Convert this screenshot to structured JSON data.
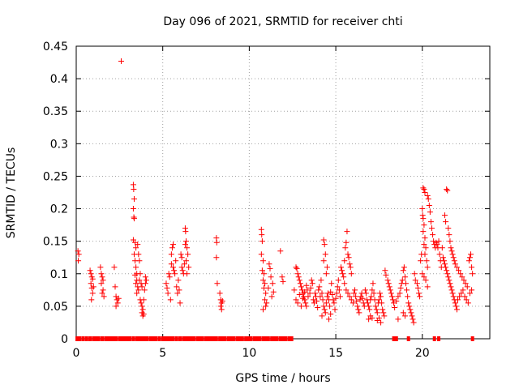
{
  "chart_data": {
    "type": "scatter",
    "title": "Day 096 of 2021, SRMTID for receiver chti",
    "xlabel": "GPS time / hours",
    "ylabel": "SRMTID / TECUs",
    "xlim": [
      0,
      23.9
    ],
    "ylim": [
      0,
      0.45
    ],
    "xticks": [
      0,
      5,
      10,
      15,
      20
    ],
    "xtick_labels": [
      "0",
      "5",
      "10",
      "15",
      "20"
    ],
    "yticks": [
      0,
      0.05,
      0.1,
      0.15,
      0.2,
      0.25,
      0.3,
      0.35,
      0.4,
      0.45
    ],
    "ytick_labels": [
      "0",
      "0.05",
      "0.1",
      "0.15",
      "0.2",
      "0.25",
      "0.3",
      "0.35",
      "0.4",
      "0.45"
    ],
    "grid": true,
    "legend": "none",
    "marker": "plus",
    "series_color": "#ff0000",
    "zero_marker_color": "#ff0000",
    "zero_value_x": [
      0.05,
      0.2,
      0.4,
      0.6,
      0.8,
      1.0,
      1.15,
      1.3,
      1.5,
      1.7,
      1.85,
      2.0,
      2.15,
      2.3,
      2.5,
      2.65,
      2.8,
      2.95,
      3.1,
      3.3,
      3.5,
      3.65,
      3.8,
      3.95,
      4.1,
      4.3,
      4.45,
      4.6,
      4.8,
      5.0,
      5.15,
      5.3,
      5.45,
      5.6,
      5.8,
      6.0,
      6.2,
      6.35,
      6.5,
      6.65,
      6.8,
      7.0,
      7.15,
      7.3,
      7.5,
      7.65,
      7.8,
      7.95,
      8.1,
      8.3,
      8.45,
      8.6,
      8.8,
      8.95,
      9.1,
      9.3,
      9.45,
      9.6,
      9.8,
      9.95,
      10.1,
      10.3,
      10.45,
      10.6,
      10.8,
      10.95,
      11.1,
      11.3,
      11.45,
      11.6,
      11.8,
      11.95,
      12.1,
      12.3,
      12.45,
      18.35,
      18.5,
      19.2,
      20.7,
      20.95,
      22.9
    ],
    "points": [
      [
        0.1,
        0.135
      ],
      [
        0.15,
        0.13
      ],
      [
        0.12,
        0.12
      ],
      [
        0.8,
        0.105
      ],
      [
        0.85,
        0.1
      ],
      [
        0.9,
        0.095
      ],
      [
        0.85,
        0.085
      ],
      [
        0.9,
        0.078
      ],
      [
        0.95,
        0.07
      ],
      [
        0.88,
        0.06
      ],
      [
        1.0,
        0.08
      ],
      [
        0.95,
        0.092
      ],
      [
        1.4,
        0.11
      ],
      [
        1.45,
        0.1
      ],
      [
        1.5,
        0.095
      ],
      [
        1.45,
        0.085
      ],
      [
        1.55,
        0.075
      ],
      [
        1.5,
        0.07
      ],
      [
        1.6,
        0.065
      ],
      [
        1.55,
        0.09
      ],
      [
        2.2,
        0.11
      ],
      [
        2.25,
        0.08
      ],
      [
        2.3,
        0.065
      ],
      [
        2.35,
        0.06
      ],
      [
        2.4,
        0.055
      ],
      [
        2.3,
        0.05
      ],
      [
        2.45,
        0.062
      ],
      [
        2.6,
        0.427
      ],
      [
        3.3,
        0.237
      ],
      [
        3.32,
        0.23
      ],
      [
        3.35,
        0.215
      ],
      [
        3.3,
        0.2
      ],
      [
        3.33,
        0.187
      ],
      [
        3.35,
        0.185
      ],
      [
        3.3,
        0.152
      ],
      [
        3.4,
        0.148
      ],
      [
        3.45,
        0.14
      ],
      [
        3.35,
        0.13
      ],
      [
        3.4,
        0.12
      ],
      [
        3.45,
        0.11
      ],
      [
        3.5,
        0.1
      ],
      [
        3.4,
        0.098
      ],
      [
        3.5,
        0.09
      ],
      [
        3.45,
        0.085
      ],
      [
        3.55,
        0.08
      ],
      [
        3.6,
        0.075
      ],
      [
        3.5,
        0.07
      ],
      [
        3.55,
        0.145
      ],
      [
        3.6,
        0.13
      ],
      [
        3.65,
        0.12
      ],
      [
        3.7,
        0.1
      ],
      [
        3.65,
        0.09
      ],
      [
        3.75,
        0.085
      ],
      [
        3.8,
        0.08
      ],
      [
        3.7,
        0.06
      ],
      [
        3.75,
        0.055
      ],
      [
        3.8,
        0.05
      ],
      [
        3.85,
        0.045
      ],
      [
        3.8,
        0.04
      ],
      [
        3.9,
        0.038
      ],
      [
        3.85,
        0.035
      ],
      [
        3.9,
        0.06
      ],
      [
        3.95,
        0.075
      ],
      [
        4.0,
        0.085
      ],
      [
        4.05,
        0.09
      ],
      [
        4.0,
        0.095
      ],
      [
        5.2,
        0.085
      ],
      [
        5.25,
        0.078
      ],
      [
        5.3,
        0.07
      ],
      [
        5.35,
        0.1
      ],
      [
        5.4,
        0.095
      ],
      [
        5.45,
        0.06
      ],
      [
        5.5,
        0.13
      ],
      [
        5.55,
        0.14
      ],
      [
        5.6,
        0.145
      ],
      [
        5.5,
        0.115
      ],
      [
        5.6,
        0.11
      ],
      [
        5.65,
        0.105
      ],
      [
        5.7,
        0.1
      ],
      [
        5.75,
        0.12
      ],
      [
        5.8,
        0.08
      ],
      [
        5.85,
        0.07
      ],
      [
        5.9,
        0.09
      ],
      [
        5.95,
        0.075
      ],
      [
        6.0,
        0.055
      ],
      [
        6.05,
        0.13
      ],
      [
        6.1,
        0.125
      ],
      [
        6.1,
        0.11
      ],
      [
        6.15,
        0.105
      ],
      [
        6.2,
        0.1
      ],
      [
        6.25,
        0.115
      ],
      [
        6.3,
        0.17
      ],
      [
        6.32,
        0.165
      ],
      [
        6.35,
        0.15
      ],
      [
        6.3,
        0.145
      ],
      [
        6.4,
        0.14
      ],
      [
        6.35,
        0.12
      ],
      [
        6.4,
        0.1
      ],
      [
        6.45,
        0.13
      ],
      [
        6.5,
        0.11
      ],
      [
        8.1,
        0.155
      ],
      [
        8.12,
        0.148
      ],
      [
        8.1,
        0.125
      ],
      [
        8.15,
        0.085
      ],
      [
        8.3,
        0.07
      ],
      [
        8.35,
        0.06
      ],
      [
        8.4,
        0.055
      ],
      [
        8.35,
        0.05
      ],
      [
        8.4,
        0.045
      ],
      [
        8.45,
        0.058
      ],
      [
        10.7,
        0.168
      ],
      [
        10.72,
        0.16
      ],
      [
        10.75,
        0.15
      ],
      [
        10.7,
        0.13
      ],
      [
        10.8,
        0.12
      ],
      [
        10.75,
        0.105
      ],
      [
        10.85,
        0.1
      ],
      [
        10.8,
        0.09
      ],
      [
        10.9,
        0.085
      ],
      [
        10.85,
        0.078
      ],
      [
        10.95,
        0.07
      ],
      [
        10.9,
        0.06
      ],
      [
        11.0,
        0.055
      ],
      [
        10.95,
        0.05
      ],
      [
        10.8,
        0.045
      ],
      [
        11.1,
        0.078
      ],
      [
        11.15,
        0.115
      ],
      [
        11.2,
        0.108
      ],
      [
        11.25,
        0.095
      ],
      [
        11.3,
        0.065
      ],
      [
        11.35,
        0.085
      ],
      [
        11.4,
        0.072
      ],
      [
        11.8,
        0.135
      ],
      [
        11.9,
        0.095
      ],
      [
        11.95,
        0.088
      ],
      [
        12.6,
        0.075
      ],
      [
        12.7,
        0.11
      ],
      [
        12.75,
        0.108
      ],
      [
        12.8,
        0.1
      ],
      [
        12.85,
        0.095
      ],
      [
        12.9,
        0.09
      ],
      [
        12.95,
        0.085
      ],
      [
        13.0,
        0.08
      ],
      [
        13.05,
        0.075
      ],
      [
        13.1,
        0.07
      ],
      [
        13.15,
        0.065
      ],
      [
        13.2,
        0.06
      ],
      [
        13.25,
        0.055
      ],
      [
        13.3,
        0.05
      ],
      [
        12.7,
        0.06
      ],
      [
        12.8,
        0.055
      ],
      [
        12.9,
        0.068
      ],
      [
        13.0,
        0.05
      ],
      [
        13.1,
        0.062
      ],
      [
        13.2,
        0.072
      ],
      [
        13.3,
        0.082
      ],
      [
        13.35,
        0.075
      ],
      [
        13.4,
        0.065
      ],
      [
        13.5,
        0.07
      ],
      [
        13.55,
        0.078
      ],
      [
        13.6,
        0.09
      ],
      [
        13.65,
        0.085
      ],
      [
        13.7,
        0.06
      ],
      [
        13.75,
        0.055
      ],
      [
        13.8,
        0.07
      ],
      [
        13.85,
        0.065
      ],
      [
        13.9,
        0.058
      ],
      [
        13.95,
        0.048
      ],
      [
        14.0,
        0.075
      ],
      [
        14.05,
        0.08
      ],
      [
        14.1,
        0.065
      ],
      [
        14.15,
        0.09
      ],
      [
        14.2,
        0.07
      ],
      [
        14.25,
        0.06
      ],
      [
        14.3,
        0.05
      ],
      [
        14.35,
        0.045
      ],
      [
        14.4,
        0.04
      ],
      [
        14.45,
        0.055
      ],
      [
        14.5,
        0.065
      ],
      [
        14.55,
        0.07
      ],
      [
        14.6,
        0.06
      ],
      [
        14.65,
        0.05
      ],
      [
        14.7,
        0.072
      ],
      [
        14.75,
        0.085
      ],
      [
        14.8,
        0.068
      ],
      [
        14.85,
        0.06
      ],
      [
        14.9,
        0.055
      ],
      [
        14.95,
        0.045
      ],
      [
        15.0,
        0.062
      ],
      [
        15.05,
        0.07
      ],
      [
        15.1,
        0.08
      ],
      [
        15.15,
        0.09
      ],
      [
        15.2,
        0.075
      ],
      [
        15.25,
        0.065
      ],
      [
        14.3,
        0.152
      ],
      [
        14.35,
        0.145
      ],
      [
        14.4,
        0.13
      ],
      [
        14.3,
        0.12
      ],
      [
        14.45,
        0.1
      ],
      [
        14.5,
        0.11
      ],
      [
        14.2,
        0.035
      ],
      [
        14.6,
        0.03
      ],
      [
        14.7,
        0.038
      ],
      [
        15.3,
        0.11
      ],
      [
        15.35,
        0.105
      ],
      [
        15.4,
        0.1
      ],
      [
        15.45,
        0.095
      ],
      [
        15.5,
        0.12
      ],
      [
        15.55,
        0.14
      ],
      [
        15.6,
        0.148
      ],
      [
        15.65,
        0.165
      ],
      [
        15.7,
        0.13
      ],
      [
        15.75,
        0.125
      ],
      [
        15.8,
        0.115
      ],
      [
        15.85,
        0.11
      ],
      [
        15.9,
        0.1
      ],
      [
        15.5,
        0.085
      ],
      [
        15.6,
        0.075
      ],
      [
        15.7,
        0.07
      ],
      [
        15.8,
        0.065
      ],
      [
        15.9,
        0.06
      ],
      [
        16.0,
        0.055
      ],
      [
        16.05,
        0.07
      ],
      [
        16.1,
        0.075
      ],
      [
        16.15,
        0.065
      ],
      [
        16.2,
        0.058
      ],
      [
        16.25,
        0.05
      ],
      [
        16.3,
        0.045
      ],
      [
        16.35,
        0.04
      ],
      [
        16.4,
        0.06
      ],
      [
        16.45,
        0.065
      ],
      [
        16.5,
        0.07
      ],
      [
        16.55,
        0.062
      ],
      [
        16.6,
        0.055
      ],
      [
        16.65,
        0.05
      ],
      [
        16.7,
        0.075
      ],
      [
        16.75,
        0.07
      ],
      [
        16.8,
        0.06
      ],
      [
        16.85,
        0.055
      ],
      [
        16.9,
        0.05
      ],
      [
        16.95,
        0.045
      ],
      [
        17.0,
        0.06
      ],
      [
        17.05,
        0.065
      ],
      [
        17.1,
        0.075
      ],
      [
        17.15,
        0.085
      ],
      [
        17.2,
        0.07
      ],
      [
        17.25,
        0.06
      ],
      [
        17.3,
        0.05
      ],
      [
        17.35,
        0.045
      ],
      [
        17.4,
        0.04
      ],
      [
        17.45,
        0.055
      ],
      [
        17.5,
        0.06
      ],
      [
        17.55,
        0.07
      ],
      [
        17.6,
        0.065
      ],
      [
        17.65,
        0.055
      ],
      [
        17.7,
        0.045
      ],
      [
        17.75,
        0.04
      ],
      [
        17.8,
        0.035
      ],
      [
        17.4,
        0.028
      ],
      [
        17.5,
        0.032
      ],
      [
        17.6,
        0.025
      ],
      [
        16.9,
        0.03
      ],
      [
        17.0,
        0.035
      ],
      [
        17.1,
        0.032
      ],
      [
        17.85,
        0.105
      ],
      [
        17.9,
        0.098
      ],
      [
        18.0,
        0.09
      ],
      [
        18.05,
        0.085
      ],
      [
        18.1,
        0.08
      ],
      [
        18.15,
        0.075
      ],
      [
        18.2,
        0.07
      ],
      [
        18.25,
        0.065
      ],
      [
        18.3,
        0.06
      ],
      [
        18.35,
        0.055
      ],
      [
        18.4,
        0.048
      ],
      [
        18.5,
        0.058
      ],
      [
        18.6,
        0.065
      ],
      [
        18.7,
        0.07
      ],
      [
        18.75,
        0.078
      ],
      [
        18.8,
        0.085
      ],
      [
        18.85,
        0.09
      ],
      [
        18.9,
        0.105
      ],
      [
        18.95,
        0.11
      ],
      [
        19.0,
        0.095
      ],
      [
        19.05,
        0.085
      ],
      [
        19.1,
        0.075
      ],
      [
        19.15,
        0.065
      ],
      [
        19.2,
        0.055
      ],
      [
        19.25,
        0.05
      ],
      [
        19.3,
        0.045
      ],
      [
        19.35,
        0.04
      ],
      [
        19.4,
        0.035
      ],
      [
        19.45,
        0.03
      ],
      [
        19.5,
        0.025
      ],
      [
        18.9,
        0.04
      ],
      [
        19.0,
        0.035
      ],
      [
        18.6,
        0.03
      ],
      [
        19.55,
        0.1
      ],
      [
        19.6,
        0.09
      ],
      [
        19.7,
        0.085
      ],
      [
        19.75,
        0.078
      ],
      [
        19.8,
        0.07
      ],
      [
        19.85,
        0.065
      ],
      [
        19.9,
        0.12
      ],
      [
        19.95,
        0.13
      ],
      [
        20.0,
        0.2
      ],
      [
        20.02,
        0.19
      ],
      [
        20.05,
        0.185
      ],
      [
        20.1,
        0.175
      ],
      [
        20.05,
        0.165
      ],
      [
        20.15,
        0.155
      ],
      [
        20.1,
        0.145
      ],
      [
        20.2,
        0.14
      ],
      [
        20.15,
        0.13
      ],
      [
        20.25,
        0.12
      ],
      [
        20.3,
        0.11
      ],
      [
        20.0,
        0.1
      ],
      [
        20.1,
        0.095
      ],
      [
        20.2,
        0.09
      ],
      [
        20.3,
        0.08
      ],
      [
        20.05,
        0.232
      ],
      [
        20.1,
        0.23
      ],
      [
        20.15,
        0.225
      ],
      [
        20.3,
        0.22
      ],
      [
        20.35,
        0.215
      ],
      [
        20.4,
        0.205
      ],
      [
        20.45,
        0.195
      ],
      [
        20.5,
        0.18
      ],
      [
        20.55,
        0.17
      ],
      [
        20.6,
        0.16
      ],
      [
        20.65,
        0.15
      ],
      [
        20.7,
        0.145
      ],
      [
        20.75,
        0.14
      ],
      [
        20.8,
        0.148
      ],
      [
        20.85,
        0.145
      ],
      [
        20.9,
        0.14
      ],
      [
        20.95,
        0.15
      ],
      [
        21.0,
        0.13
      ],
      [
        21.05,
        0.12
      ],
      [
        21.1,
        0.11
      ],
      [
        21.15,
        0.14
      ],
      [
        21.2,
        0.125
      ],
      [
        21.25,
        0.12
      ],
      [
        21.3,
        0.115
      ],
      [
        21.35,
        0.11
      ],
      [
        21.4,
        0.105
      ],
      [
        21.45,
        0.1
      ],
      [
        21.5,
        0.095
      ],
      [
        21.55,
        0.09
      ],
      [
        21.6,
        0.085
      ],
      [
        21.65,
        0.08
      ],
      [
        21.7,
        0.075
      ],
      [
        21.75,
        0.07
      ],
      [
        21.8,
        0.065
      ],
      [
        21.85,
        0.06
      ],
      [
        21.9,
        0.055
      ],
      [
        21.95,
        0.05
      ],
      [
        22.0,
        0.045
      ],
      [
        21.3,
        0.19
      ],
      [
        21.35,
        0.18
      ],
      [
        21.4,
        0.23
      ],
      [
        21.45,
        0.228
      ],
      [
        21.5,
        0.17
      ],
      [
        21.55,
        0.16
      ],
      [
        21.6,
        0.15
      ],
      [
        21.65,
        0.14
      ],
      [
        21.7,
        0.135
      ],
      [
        21.75,
        0.13
      ],
      [
        21.8,
        0.125
      ],
      [
        21.85,
        0.12
      ],
      [
        21.9,
        0.115
      ],
      [
        22.0,
        0.11
      ],
      [
        22.1,
        0.105
      ],
      [
        22.2,
        0.1
      ],
      [
        22.3,
        0.095
      ],
      [
        22.4,
        0.09
      ],
      [
        22.5,
        0.085
      ],
      [
        22.6,
        0.08
      ],
      [
        22.7,
        0.12
      ],
      [
        22.75,
        0.125
      ],
      [
        22.8,
        0.13
      ],
      [
        22.85,
        0.11
      ],
      [
        22.9,
        0.1
      ],
      [
        22.05,
        0.06
      ],
      [
        22.15,
        0.065
      ],
      [
        22.25,
        0.07
      ],
      [
        22.35,
        0.075
      ],
      [
        22.45,
        0.065
      ],
      [
        22.55,
        0.06
      ],
      [
        22.65,
        0.055
      ],
      [
        22.75,
        0.07
      ],
      [
        22.85,
        0.075
      ]
    ]
  }
}
